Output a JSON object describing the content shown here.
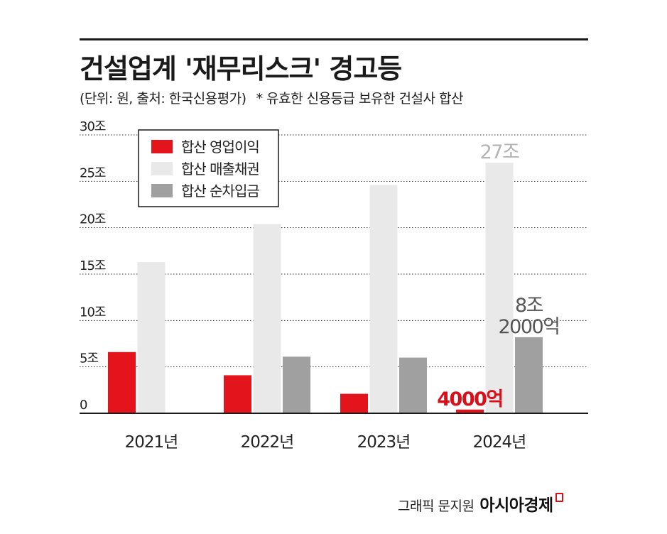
{
  "header": {
    "title": "건설업계 '재무리스크' 경고등",
    "unit_source": "(단위: 원, 출처: 한국신용평가)",
    "note": "* 유효한 신용등급 보유한 건설사 합산"
  },
  "footer": {
    "dept": "그래픽 문지원",
    "brand": "아시아경제"
  },
  "colors": {
    "operating_profit": "#e3141b",
    "receivables": "#e9e9e9",
    "net_borrowings": "#a0a0a0",
    "axis": "#1a1a1a",
    "grid": "#333333"
  },
  "chart_data": {
    "type": "bar",
    "title": "건설업계 '재무리스크' 경고등",
    "xlabel": "",
    "ylabel": "",
    "ylim": [
      0,
      30
    ],
    "y_ticks": [
      {
        "value": 0,
        "label": "0"
      },
      {
        "value": 5,
        "label": "5조"
      },
      {
        "value": 10,
        "label": "10조"
      },
      {
        "value": 15,
        "label": "15조"
      },
      {
        "value": 20,
        "label": "20조"
      },
      {
        "value": 25,
        "label": "25조"
      },
      {
        "value": 30,
        "label": "30조"
      }
    ],
    "grid": true,
    "legend_position": "top-left",
    "categories": [
      "2021년",
      "2022년",
      "2023년",
      "2024년"
    ],
    "series": [
      {
        "name": "합산 영업이익",
        "color": "#e3141b",
        "values": [
          6.6,
          4.1,
          2.1,
          0.4
        ]
      },
      {
        "name": "합산 매출채권",
        "color": "#e9e9e9",
        "values": [
          16.3,
          20.4,
          24.6,
          27.0
        ]
      },
      {
        "name": "합산 순차입금",
        "color": "#a0a0a0",
        "values": [
          null,
          6.1,
          6.0,
          8.2
        ]
      }
    ],
    "annotations": [
      {
        "series": 0,
        "category": 3,
        "lines": [
          "4000억"
        ],
        "color": "#d9101a"
      },
      {
        "series": 1,
        "category": 3,
        "lines": [
          "27조"
        ],
        "color": "#b4b4b4"
      },
      {
        "series": 2,
        "category": 3,
        "lines": [
          "8조",
          "2000억"
        ],
        "color": "#555555"
      }
    ]
  }
}
